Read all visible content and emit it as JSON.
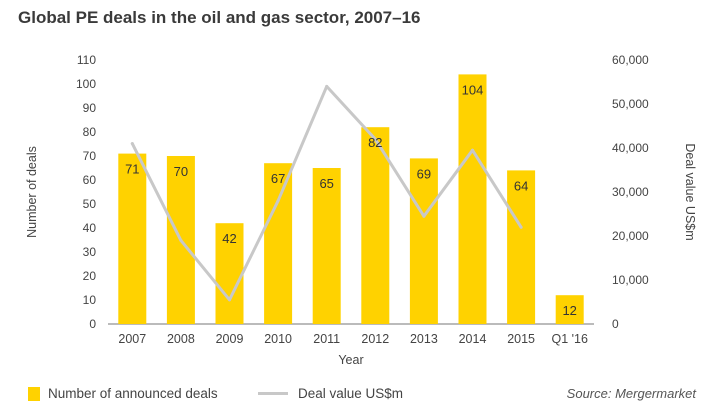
{
  "chart_data": {
    "type": "bar",
    "title": "Global PE deals in the oil and gas sector, 2007–16",
    "xlabel": "Year",
    "ylabel_left": "Number of deals",
    "ylabel_right": "Deal value US$m",
    "categories": [
      "2007",
      "2008",
      "2009",
      "2010",
      "2011",
      "2012",
      "2013",
      "2014",
      "2015",
      "Q1 '16"
    ],
    "ylim_left": [
      0,
      110
    ],
    "ylim_right": [
      0,
      60000
    ],
    "yticks_left": [
      0,
      10,
      20,
      30,
      40,
      50,
      60,
      70,
      80,
      90,
      100,
      110
    ],
    "yticks_right": [
      0,
      10000,
      20000,
      30000,
      40000,
      50000,
      60000
    ],
    "yticks_right_labels": [
      "0",
      "10,000",
      "20,000",
      "30,000",
      "40,000",
      "50,000",
      "60,000"
    ],
    "series": [
      {
        "name": "Number of announced deals",
        "type": "bar",
        "axis": "left",
        "color": "#FFD200",
        "values": [
          71,
          70,
          42,
          67,
          65,
          82,
          69,
          104,
          64,
          12
        ],
        "value_labels": [
          "71",
          "70",
          "42",
          "67",
          "65",
          "82",
          "69",
          "104",
          "64",
          "12"
        ]
      },
      {
        "name": "Deal value US$m",
        "type": "line",
        "axis": "right",
        "color": "#C8C8C8",
        "values": [
          41000,
          19000,
          5500,
          28000,
          54000,
          42000,
          24500,
          39500,
          22000,
          null
        ]
      }
    ],
    "legend_position": "bottom-left",
    "grid": false,
    "source": "Source: Mergermarket"
  }
}
